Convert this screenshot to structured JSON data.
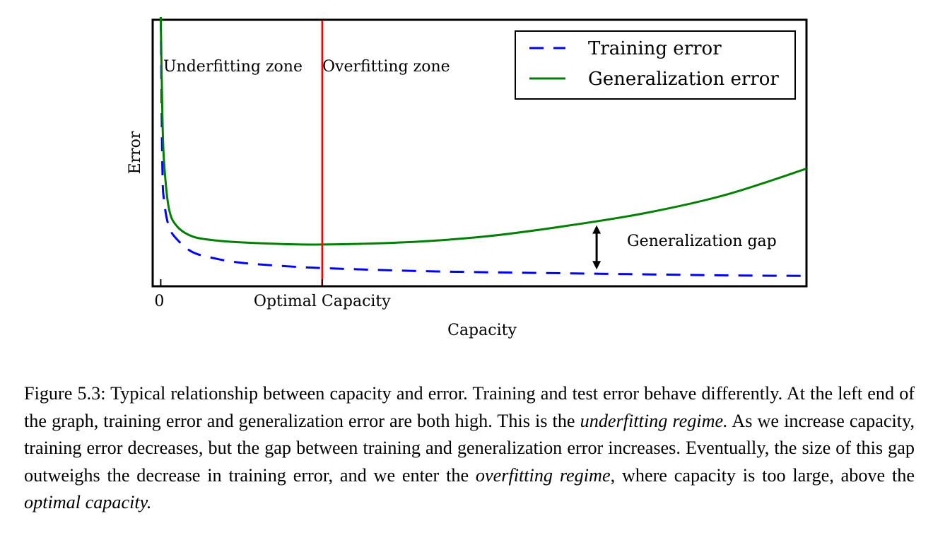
{
  "chart_data": {
    "type": "line",
    "xlabel": "Capacity",
    "ylabel": "Error",
    "x_ticks": [
      {
        "x": 0,
        "label": "0"
      },
      {
        "x": 1,
        "label": "Optimal Capacity"
      }
    ],
    "xlim": [
      -0.05,
      4.0
    ],
    "ylim": [
      0,
      1.0
    ],
    "grid": false,
    "legend_position": "top-right",
    "series": [
      {
        "name": "Training error",
        "style": "dashed",
        "color": "#0000ff",
        "x": [
          0.0,
          0.01,
          0.02,
          0.05,
          0.1,
          0.2,
          0.35,
          0.5,
          0.75,
          1.0,
          1.5,
          2.0,
          2.5,
          3.0,
          3.5,
          4.0
        ],
        "y": [
          1.0,
          0.43,
          0.3,
          0.2,
          0.15,
          0.1,
          0.075,
          0.06,
          0.048,
          0.04,
          0.03,
          0.024,
          0.02,
          0.016,
          0.012,
          0.01
        ]
      },
      {
        "name": "Generalization error",
        "style": "solid",
        "color": "#008000",
        "x": [
          0.0,
          0.01,
          0.02,
          0.05,
          0.1,
          0.2,
          0.35,
          0.5,
          0.75,
          1.0,
          1.5,
          2.0,
          2.5,
          3.0,
          3.5,
          4.0
        ],
        "y": [
          1.0,
          0.63,
          0.45,
          0.27,
          0.2,
          0.16,
          0.145,
          0.138,
          0.132,
          0.13,
          0.138,
          0.16,
          0.2,
          0.25,
          0.32,
          0.42
        ]
      }
    ],
    "vertical_line": {
      "x": 1.0,
      "color": "#ff0000"
    },
    "annotations": {
      "underfitting": "Underfitting zone",
      "overfitting": "Overfitting zone",
      "gap": "Generalization gap",
      "gap_x": 2.7
    }
  },
  "caption": {
    "label": "Figure 5.3:",
    "s1": "Typical relationship between capacity and error. Training and test error behave differently. At the left end of the graph, training error and generalization error are both high. This is the",
    "em1": "underfitting regime.",
    "s2": "As we increase capacity, training error decreases, but the gap between training and generalization error increases. Eventually, the size of this gap outweighs the decrease in training error, and we enter the",
    "em2": "overfitting regime",
    "s3": ", where capacity is too large, above the",
    "em3": "optimal capacity.",
    "s4": ""
  }
}
